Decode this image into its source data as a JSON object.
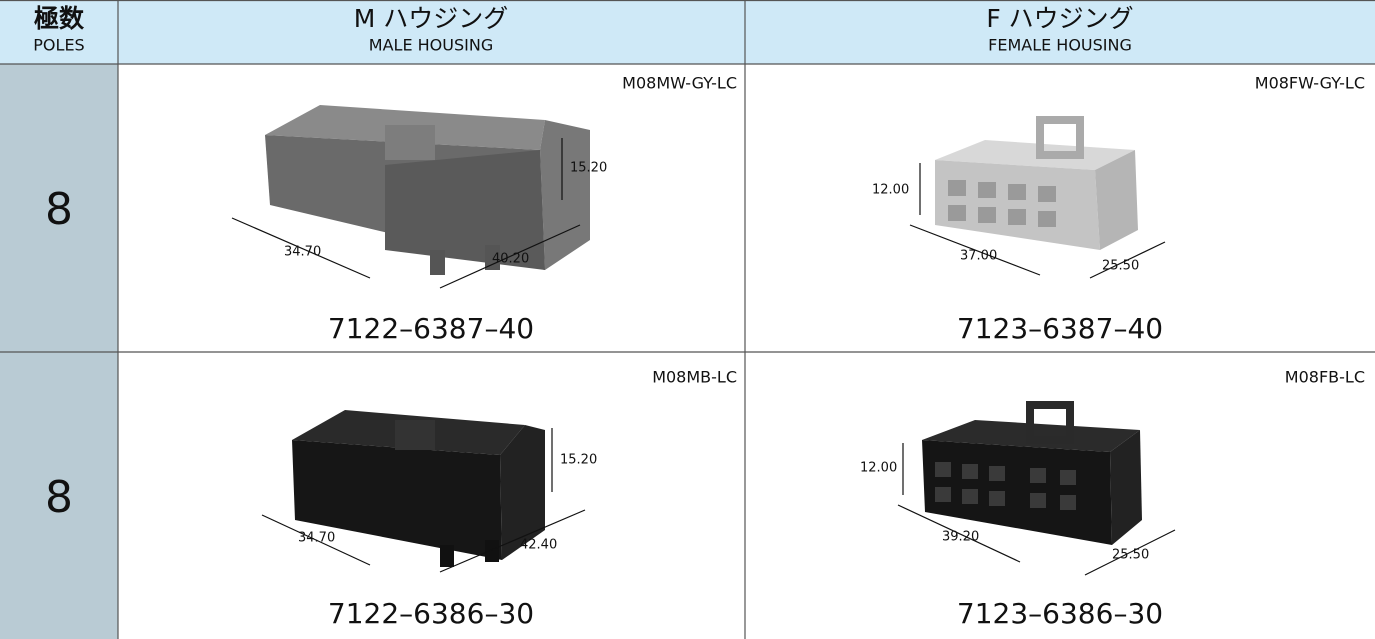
{
  "header": {
    "poles": {
      "jp": "極数",
      "en": "POLES"
    },
    "male": {
      "jp": "M ハウジング",
      "en": "MALE HOUSING"
    },
    "female": {
      "jp": "F ハウジング",
      "en": "FEMALE HOUSING"
    }
  },
  "rows": [
    {
      "poles": "8",
      "male": {
        "model": "M08MW-GY-LC",
        "part": "7122–6387–40",
        "dims": [
          "15.20",
          "34.70",
          "40.20"
        ]
      },
      "female": {
        "model": "M08FW-GY-LC",
        "part": "7123–6387–40",
        "dims": [
          "12.00",
          "37.00",
          "25.50"
        ]
      }
    },
    {
      "poles": "8",
      "male": {
        "model": "M08MB-LC",
        "part": "7122–6386–30",
        "dims": [
          "15.20",
          "34.70",
          "42.40"
        ]
      },
      "female": {
        "model": "M08FB-LC",
        "part": "7123–6386–30",
        "dims": [
          "12.00",
          "39.20",
          "25.50"
        ]
      }
    }
  ]
}
